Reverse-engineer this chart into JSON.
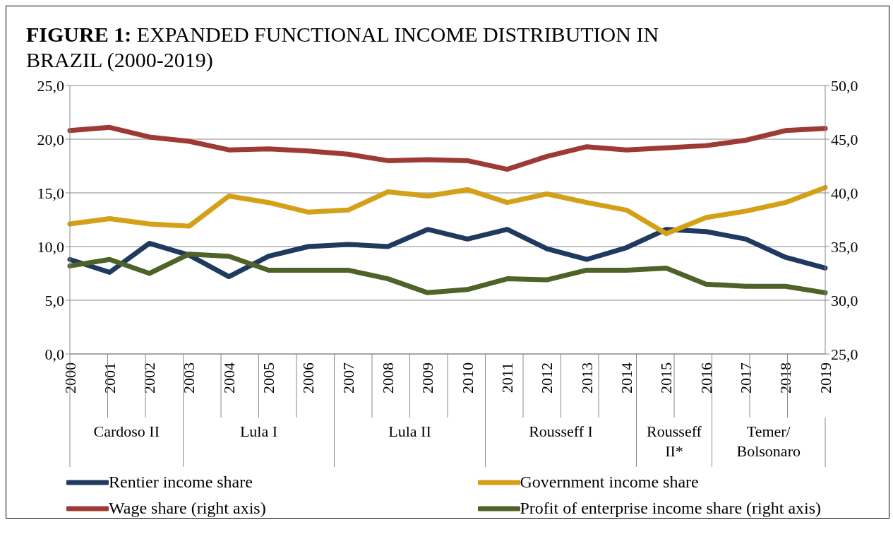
{
  "chart_data": {
    "type": "line",
    "title": "FIGURE 1: EXPANDED FUNCTIONAL INCOME DISTRIBUTION IN BRAZIL (2000-2019)",
    "categories": [
      "2000",
      "2001",
      "2002",
      "2003",
      "2004",
      "2005",
      "2006",
      "2007",
      "2008",
      "2009",
      "2010",
      "2011",
      "2012",
      "2013",
      "2014",
      "2015",
      "2016",
      "2017",
      "2018",
      "2019"
    ],
    "series": [
      {
        "name": "Rentier income share",
        "color": "#1f3a5f",
        "values": [
          8.8,
          7.6,
          10.3,
          9.2,
          7.2,
          9.1,
          10.0,
          10.2,
          10.0,
          11.6,
          10.7,
          11.6,
          9.8,
          8.8,
          9.9,
          11.6,
          11.4,
          10.7,
          9.0,
          8.0
        ]
      },
      {
        "name": "Government income share",
        "color": "#d4a017",
        "values": [
          12.1,
          12.6,
          12.1,
          11.9,
          14.7,
          14.1,
          13.2,
          13.4,
          15.1,
          14.7,
          15.3,
          14.1,
          14.9,
          14.1,
          13.4,
          11.2,
          12.7,
          13.3,
          14.1,
          15.5
        ]
      },
      {
        "name": "Wage share (right axis)",
        "color": "#9e3a36",
        "axis": "y2",
        "values": [
          45.8,
          46.1,
          45.2,
          44.8,
          44.0,
          44.1,
          43.9,
          43.6,
          43.0,
          43.1,
          43.0,
          42.2,
          43.4,
          44.3,
          44.0,
          44.2,
          44.4,
          44.9,
          45.8,
          46.0
        ]
      },
      {
        "name": "Profit of enterprise income share (right axis)",
        "color": "#4f6228",
        "axis": "y2",
        "values": [
          33.2,
          33.8,
          32.5,
          34.3,
          34.1,
          32.8,
          32.8,
          32.8,
          32.0,
          30.7,
          31.0,
          32.0,
          31.9,
          32.8,
          32.8,
          33.0,
          31.5,
          31.3,
          31.3,
          30.7
        ]
      }
    ],
    "ylim": [
      0,
      25
    ],
    "yticks": [
      {
        "value": 0,
        "label": "0,0"
      },
      {
        "value": 5,
        "label": "5,0"
      },
      {
        "value": 10,
        "label": "10,0"
      },
      {
        "value": 15,
        "label": "15,0"
      },
      {
        "value": 20,
        "label": "20,0"
      },
      {
        "value": 25,
        "label": "25,0"
      }
    ],
    "y2lim": [
      25,
      50
    ],
    "y2ticks": [
      {
        "value": 25,
        "label": "25,0"
      },
      {
        "value": 30,
        "label": "30,0"
      },
      {
        "value": 35,
        "label": "35,0"
      },
      {
        "value": 40,
        "label": "40,0"
      },
      {
        "value": 45,
        "label": "45,0"
      },
      {
        "value": 50,
        "label": "50,0"
      }
    ],
    "annotations": [
      "Cardoso II",
      "Lula I",
      "Lula II",
      "Rousseff I",
      "Rousseff II*",
      "Temer/ Bolsonaro"
    ],
    "grid": "y",
    "legend": "bottom",
    "marker": "none",
    "line_style": "solid"
  }
}
